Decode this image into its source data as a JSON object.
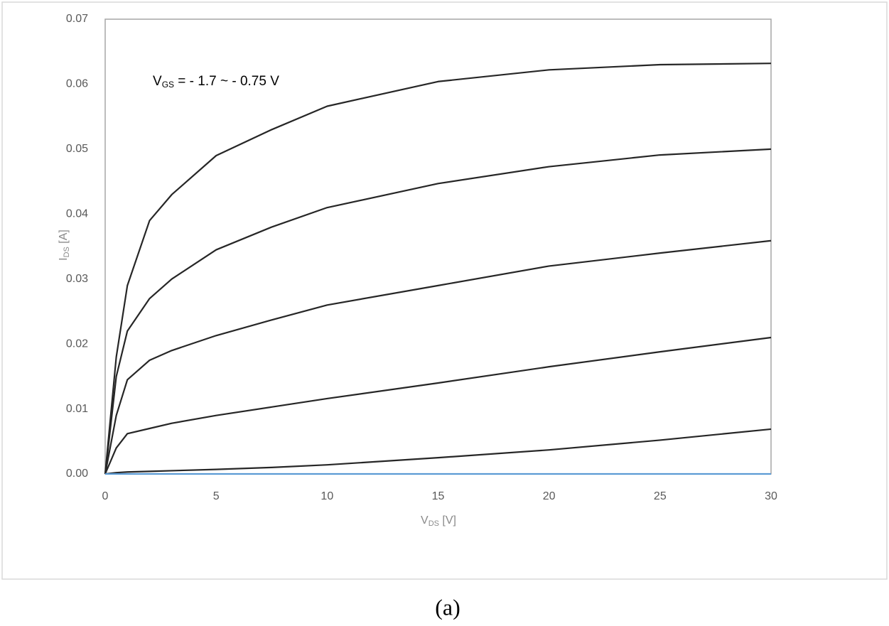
{
  "chart_data": {
    "type": "line",
    "x_label": {
      "text": "V",
      "subscript": "DS",
      "suffix": " [V]"
    },
    "y_label": {
      "text": "I",
      "subscript": "DS",
      "suffix": " [A]"
    },
    "annotation": {
      "text": "V",
      "subscript": "GS",
      "suffix": " = - 1.7 ~ - 0.75 V"
    },
    "caption": "(a)",
    "x": [
      0,
      0.5,
      1,
      2,
      3,
      5,
      7.5,
      10,
      15,
      20,
      25,
      30
    ],
    "series": [
      {
        "color": "#262626",
        "values": [
          0,
          0.018,
          0.029,
          0.039,
          0.043,
          0.049,
          0.053,
          0.0566,
          0.0604,
          0.0622,
          0.063,
          0.0632
        ]
      },
      {
        "color": "#262626",
        "values": [
          0,
          0.015,
          0.022,
          0.027,
          0.03,
          0.0345,
          0.038,
          0.041,
          0.0447,
          0.0473,
          0.0491,
          0.05
        ]
      },
      {
        "color": "#262626",
        "values": [
          0,
          0.009,
          0.0145,
          0.0175,
          0.019,
          0.0213,
          0.0237,
          0.026,
          0.029,
          0.032,
          0.034,
          0.0359
        ]
      },
      {
        "color": "#262626",
        "values": [
          0,
          0.004,
          0.0062,
          0.007,
          0.0078,
          0.009,
          0.0103,
          0.0116,
          0.014,
          0.0165,
          0.0188,
          0.021
        ]
      },
      {
        "color": "#262626",
        "values": [
          0,
          0.0002,
          0.0003,
          0.0004,
          0.0005,
          0.0007,
          0.001,
          0.0014,
          0.0025,
          0.0037,
          0.0052,
          0.0069
        ]
      },
      {
        "color": "#5b9bd5",
        "values": [
          0,
          0,
          0,
          0,
          0,
          0,
          0,
          0,
          0,
          0,
          0,
          0
        ]
      }
    ],
    "xlim": [
      0,
      30
    ],
    "xticks": [
      0,
      5,
      10,
      15,
      20,
      25,
      30
    ],
    "ylim": [
      0,
      0.07
    ],
    "yticks": [
      {
        "value": 0,
        "label": "0.00"
      },
      0.01,
      0.02,
      0.03,
      0.04,
      0.05,
      0.06,
      0.07
    ],
    "grid": false
  }
}
